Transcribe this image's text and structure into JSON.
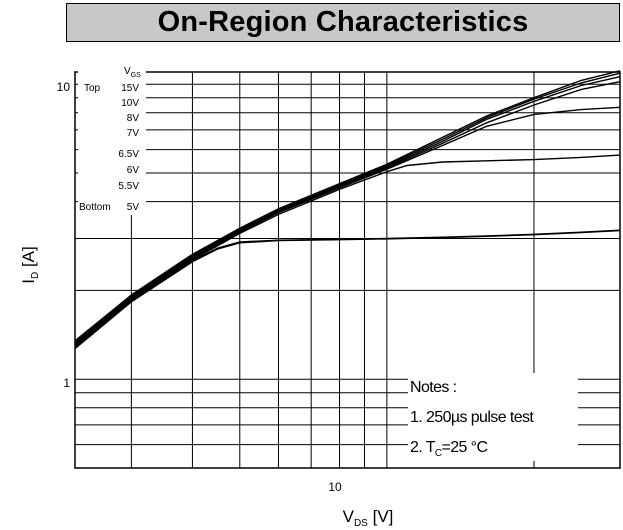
{
  "chart_data": {
    "type": "line",
    "title": "On-Region Characteristics",
    "xlabel": "V",
    "xlabel_sub": "DS",
    "xunit": "[V]",
    "ylabel": "I",
    "ylabel_sub": "D",
    "yunit": "[A]",
    "xscale": "log",
    "yscale": "log",
    "xlim": [
      2.3,
      30
    ],
    "ylim": [
      0.5,
      11
    ],
    "x_tick_labels": [
      {
        "value": 10,
        "label": "10"
      }
    ],
    "y_tick_labels": [
      {
        "value": 1,
        "label": "1"
      },
      {
        "value": 10,
        "label": "10"
      }
    ],
    "grid": true,
    "legend": {
      "header": "V",
      "header_sub": "GS",
      "top_label": "Top",
      "bottom_label": "Bottom",
      "entries": [
        "15V",
        "10V",
        "8V",
        "7V",
        "6.5V",
        "6V",
        "5.5V",
        "5V"
      ]
    },
    "series": [
      {
        "vgs": "15V",
        "x": [
          2.3,
          3,
          4,
          5,
          6,
          8,
          10,
          13,
          16,
          20,
          25,
          30
        ],
        "y": [
          1.35,
          1.93,
          2.65,
          3.25,
          3.78,
          4.6,
          5.35,
          6.6,
          7.8,
          9.0,
          10.3,
          11.1
        ]
      },
      {
        "vgs": "10V",
        "x": [
          2.3,
          3,
          4,
          5,
          6,
          8,
          10,
          13,
          16,
          20,
          25,
          30
        ],
        "y": [
          1.33,
          1.91,
          2.62,
          3.22,
          3.74,
          4.55,
          5.3,
          6.5,
          7.7,
          8.9,
          10.1,
          10.9
        ]
      },
      {
        "vgs": "8V",
        "x": [
          2.3,
          3,
          4,
          5,
          6,
          8,
          10,
          13,
          16,
          20,
          25,
          30
        ],
        "y": [
          1.32,
          1.9,
          2.6,
          3.2,
          3.72,
          4.52,
          5.25,
          6.4,
          7.6,
          8.75,
          9.9,
          10.6
        ]
      },
      {
        "vgs": "7V",
        "x": [
          2.3,
          3,
          4,
          5,
          6,
          8,
          10,
          13,
          16,
          20,
          25,
          30
        ],
        "y": [
          1.31,
          1.88,
          2.58,
          3.18,
          3.7,
          4.5,
          5.2,
          6.3,
          7.4,
          8.5,
          9.6,
          10.2
        ]
      },
      {
        "vgs": "6.5V",
        "x": [
          2.3,
          3,
          4,
          5,
          6,
          8,
          10,
          13,
          16,
          20,
          25,
          30
        ],
        "y": [
          1.3,
          1.87,
          2.56,
          3.15,
          3.67,
          4.45,
          5.15,
          6.2,
          7.2,
          7.9,
          8.2,
          8.35
        ]
      },
      {
        "vgs": "6V",
        "x": [
          2.3,
          3,
          4,
          5,
          6,
          8,
          10,
          11,
          13,
          16,
          20,
          25,
          30
        ],
        "y": [
          1.29,
          1.85,
          2.54,
          3.12,
          3.62,
          4.4,
          5.05,
          5.3,
          5.45,
          5.5,
          5.55,
          5.65,
          5.75
        ]
      },
      {
        "vgs": "5.5V",
        "x": [
          2.3,
          3,
          4,
          4.5,
          5,
          6,
          8,
          10,
          13,
          16,
          20,
          25,
          30
        ],
        "y": [
          1.28,
          1.84,
          2.52,
          2.78,
          2.92,
          2.96,
          2.98,
          3.0,
          3.03,
          3.06,
          3.1,
          3.15,
          3.2
        ]
      },
      {
        "vgs": "5V",
        "x": [
          2.3,
          3,
          4,
          4.5,
          5,
          6,
          8,
          10,
          13,
          16,
          20,
          25,
          30
        ],
        "y": [
          1.27,
          1.83,
          2.5,
          2.76,
          2.9,
          2.95,
          2.97,
          2.99,
          3.02,
          3.05,
          3.09,
          3.14,
          3.19
        ]
      }
    ],
    "annotations": {
      "notes_header": "Notes :",
      "note1": "1. 250µs pulse test",
      "note2_prefix": "2. T",
      "note2_sub": "C",
      "note2_suffix": "=25 °C"
    }
  }
}
